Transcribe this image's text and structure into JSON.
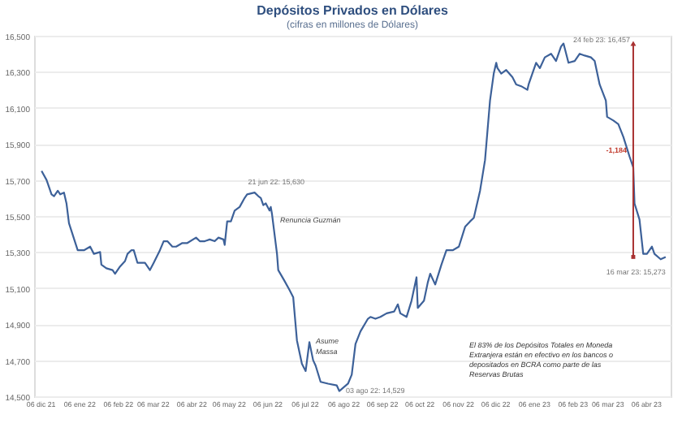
{
  "chart_data": {
    "type": "line",
    "title": "Depósitos Privados en Dólares",
    "subtitle": "(cifras en millones de Dólares)",
    "x": [
      "2021-12-07",
      "2021-12-11",
      "2021-12-15",
      "2021-12-17",
      "2021-12-20",
      "2021-12-22",
      "2021-12-25",
      "2021-12-27",
      "2021-12-29",
      "2022-01-05",
      "2022-01-10",
      "2022-01-15",
      "2022-01-18",
      "2022-01-23",
      "2022-01-24",
      "2022-01-28",
      "2022-02-02",
      "2022-02-04",
      "2022-02-08",
      "2022-02-12",
      "2022-02-14",
      "2022-02-17",
      "2022-02-19",
      "2022-02-22",
      "2022-02-28",
      "2022-03-04",
      "2022-03-07",
      "2022-03-12",
      "2022-03-15",
      "2022-03-18",
      "2022-03-22",
      "2022-03-25",
      "2022-03-30",
      "2022-04-03",
      "2022-04-10",
      "2022-04-13",
      "2022-04-17",
      "2022-04-21",
      "2022-04-25",
      "2022-04-28",
      "2022-05-02",
      "2022-05-03",
      "2022-05-05",
      "2022-05-08",
      "2022-05-11",
      "2022-05-15",
      "2022-05-19",
      "2022-05-21",
      "2022-05-27",
      "2022-05-30",
      "2022-06-01",
      "2022-06-03",
      "2022-06-05",
      "2022-06-08",
      "2022-06-09",
      "2022-06-10",
      "2022-06-14",
      "2022-06-15",
      "2022-06-20",
      "2022-06-24",
      "2022-06-27",
      "2022-06-30",
      "2022-07-04",
      "2022-07-07",
      "2022-07-10",
      "2022-07-13",
      "2022-07-15",
      "2022-07-19",
      "2022-07-25",
      "2022-08-01",
      "2022-08-03",
      "2022-08-10",
      "2022-08-13",
      "2022-08-16",
      "2022-08-20",
      "2022-08-26",
      "2022-08-28",
      "2022-09-01",
      "2022-09-05",
      "2022-09-10",
      "2022-09-16",
      "2022-09-19",
      "2022-09-21",
      "2022-09-26",
      "2022-09-30",
      "2022-10-04",
      "2022-10-05",
      "2022-10-10",
      "2022-10-13",
      "2022-10-15",
      "2022-10-19",
      "2022-10-24",
      "2022-10-28",
      "2022-11-02",
      "2022-11-07",
      "2022-11-12",
      "2022-11-16",
      "2022-11-19",
      "2022-11-24",
      "2022-11-28",
      "2022-12-02",
      "2022-12-05",
      "2022-12-07",
      "2022-12-08",
      "2022-12-11",
      "2022-12-15",
      "2022-12-20",
      "2022-12-23",
      "2022-12-27",
      "2023-01-01",
      "2023-01-02",
      "2023-01-08",
      "2023-01-11",
      "2023-01-15",
      "2023-01-20",
      "2023-01-24",
      "2023-01-28",
      "2023-01-30",
      "2023-02-03",
      "2023-02-08",
      "2023-02-12",
      "2023-02-16",
      "2023-02-21",
      "2023-02-24",
      "2023-02-28",
      "2023-03-05",
      "2023-03-06",
      "2023-03-11",
      "2023-03-15",
      "2023-03-19",
      "2023-03-24",
      "2023-03-27",
      "2023-03-28",
      "2023-04-01",
      "2023-04-04",
      "2023-04-07",
      "2023-04-11",
      "2023-04-13",
      "2023-04-18",
      "2023-04-22"
    ],
    "series": [
      {
        "color": "#3d6199",
        "values": [
          15750,
          15700,
          15620,
          15610,
          15640,
          15620,
          15630,
          15570,
          15460,
          15310,
          15310,
          15330,
          15290,
          15300,
          15230,
          15210,
          15200,
          15180,
          15220,
          15250,
          15290,
          15310,
          15310,
          15240,
          15240,
          15200,
          15240,
          15310,
          15360,
          15360,
          15330,
          15330,
          15350,
          15350,
          15380,
          15360,
          15360,
          15370,
          15360,
          15380,
          15370,
          15340,
          15470,
          15470,
          15530,
          15550,
          15600,
          15620,
          15630,
          15610,
          15600,
          15560,
          15570,
          15530,
          15550,
          15510,
          15290,
          15200,
          15140,
          15090,
          15050,
          14810,
          14680,
          14640,
          14800,
          14700,
          14670,
          14580,
          14570,
          14560,
          14529,
          14570,
          14620,
          14790,
          14860,
          14930,
          14940,
          14930,
          14940,
          14960,
          14970,
          15010,
          14960,
          14940,
          15030,
          15160,
          14990,
          15030,
          15130,
          15180,
          15120,
          15230,
          15310,
          15310,
          15330,
          15440,
          15470,
          15490,
          15640,
          15810,
          16140,
          16290,
          16350,
          16320,
          16290,
          16310,
          16270,
          16230,
          16220,
          16200,
          16230,
          16350,
          16320,
          16380,
          16400,
          16360,
          16440,
          16457,
          16350,
          16360,
          16400,
          16390,
          16380,
          16360,
          16230,
          16140,
          16050,
          16030,
          16010,
          15940,
          15830,
          15770,
          15570,
          15480,
          15290,
          15290,
          15330,
          15290,
          15260,
          15273
        ]
      }
    ],
    "xlim": [
      "2021-12-01",
      "2023-04-26"
    ],
    "xticks": [
      {
        "value": "2021-12-06",
        "label": "06 dic 21"
      },
      {
        "value": "2022-01-06",
        "label": "06 ene 22"
      },
      {
        "value": "2022-02-06",
        "label": "06 feb 22"
      },
      {
        "value": "2022-03-06",
        "label": "06 mar 22"
      },
      {
        "value": "2022-04-06",
        "label": "06 abr 22"
      },
      {
        "value": "2022-05-06",
        "label": "06 may 22"
      },
      {
        "value": "2022-06-06",
        "label": "06 jun 22"
      },
      {
        "value": "2022-07-06",
        "label": "06 jul 22"
      },
      {
        "value": "2022-08-06",
        "label": "06 ago 22"
      },
      {
        "value": "2022-09-06",
        "label": "06 sep 22"
      },
      {
        "value": "2022-10-06",
        "label": "06 oct 22"
      },
      {
        "value": "2022-11-06",
        "label": "06 nov 22"
      },
      {
        "value": "2022-12-06",
        "label": "06 dic 22"
      },
      {
        "value": "2023-01-06",
        "label": "06 ene 23"
      },
      {
        "value": "2023-02-06",
        "label": "06 feb 23"
      },
      {
        "value": "2023-03-06",
        "label": "06 mar 23"
      },
      {
        "value": "2023-04-06",
        "label": "06 abr 23"
      }
    ],
    "ylim": [
      14500,
      16500
    ],
    "yticks": [
      {
        "value": 14500,
        "label": "14,500"
      },
      {
        "value": 14700,
        "label": "14,700"
      },
      {
        "value": 14900,
        "label": "14,900"
      },
      {
        "value": 15100,
        "label": "15,100"
      },
      {
        "value": 15300,
        "label": "15,300"
      },
      {
        "value": 15500,
        "label": "15,500"
      },
      {
        "value": 15700,
        "label": "15,700"
      },
      {
        "value": 15900,
        "label": "15,900"
      },
      {
        "value": 16100,
        "label": "16,100"
      },
      {
        "value": 16300,
        "label": "16,300"
      },
      {
        "value": 16500,
        "label": "16,500"
      }
    ],
    "grid": "y",
    "marker": "none",
    "line_style": "solid",
    "annotations": [
      {
        "text": "21 jun 22: 15,630",
        "x": "2022-05-27",
        "y": 15630
      },
      {
        "text": "Renuncia Guzmán",
        "x": "2022-06-10",
        "y": 15510
      },
      {
        "text": "Asume Massa",
        "x": "2022-07-10",
        "y": 14800
      },
      {
        "text": "03 ago 22: 14,529",
        "x": "2022-08-03",
        "y": 14529
      },
      {
        "text": "24 feb 23: 16,457",
        "x": "2023-01-30",
        "y": 16457
      },
      {
        "text": "-1,184",
        "x": "2023-03-27",
        "y": 15860
      },
      {
        "text": "16 mar 23: 15,273",
        "x": "2023-04-22",
        "y": 15273
      },
      "El 83% de los Depósitos Totales en Moneda Extranjera están en efectivo en los bancos o depositados en BCRA como parte de las Reservas Brutas"
    ]
  }
}
